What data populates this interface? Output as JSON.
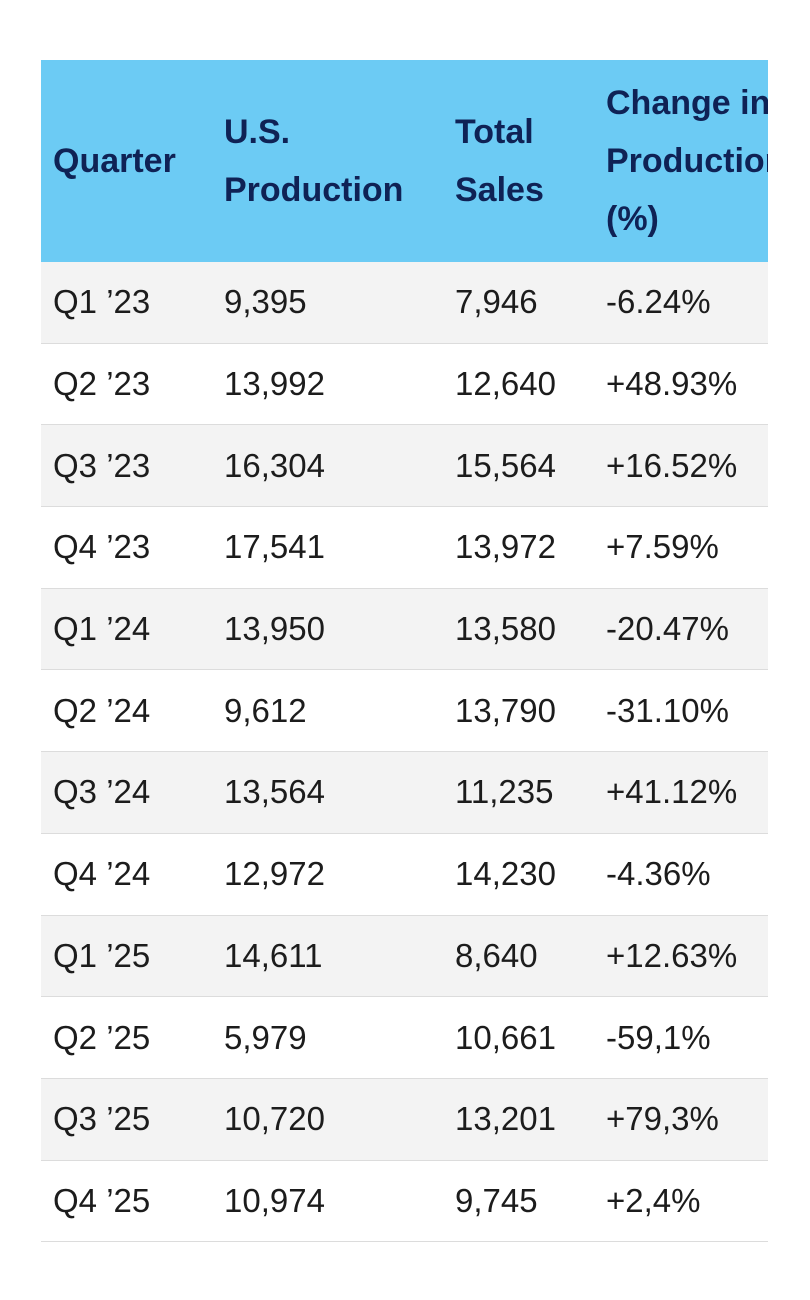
{
  "table": {
    "headers": [
      "Quarter",
      "U.S. Production",
      "Total Sales",
      "Change in Production (%)"
    ],
    "rows": [
      [
        "Q1 ’23",
        "9,395",
        "7,946",
        "-6.24%"
      ],
      [
        "Q2 ’23",
        "13,992",
        "12,640",
        "+48.93%"
      ],
      [
        "Q3 ’23",
        "16,304",
        "15,564",
        "+16.52%"
      ],
      [
        "Q4 ’23",
        "17,541",
        "13,972",
        "+7.59%"
      ],
      [
        "Q1 ’24",
        "13,950",
        "13,580",
        "-20.47%"
      ],
      [
        "Q2 ’24",
        "9,612",
        "13,790",
        "-31.10%"
      ],
      [
        "Q3 ’24",
        "13,564",
        "11,235",
        "+41.12%"
      ],
      [
        "Q4 ’24",
        "12,972",
        "14,230",
        "-4.36%"
      ],
      [
        "Q1 ’25",
        "14,611",
        "8,640",
        "+12.63%"
      ],
      [
        "Q2 ’25",
        "5,979",
        "10,661",
        "-59,1%"
      ],
      [
        "Q3 ’25",
        "10,720",
        "13,201",
        "+79,3%"
      ],
      [
        "Q4 ’25",
        "10,974",
        "9,745",
        "+2,4%"
      ]
    ]
  }
}
